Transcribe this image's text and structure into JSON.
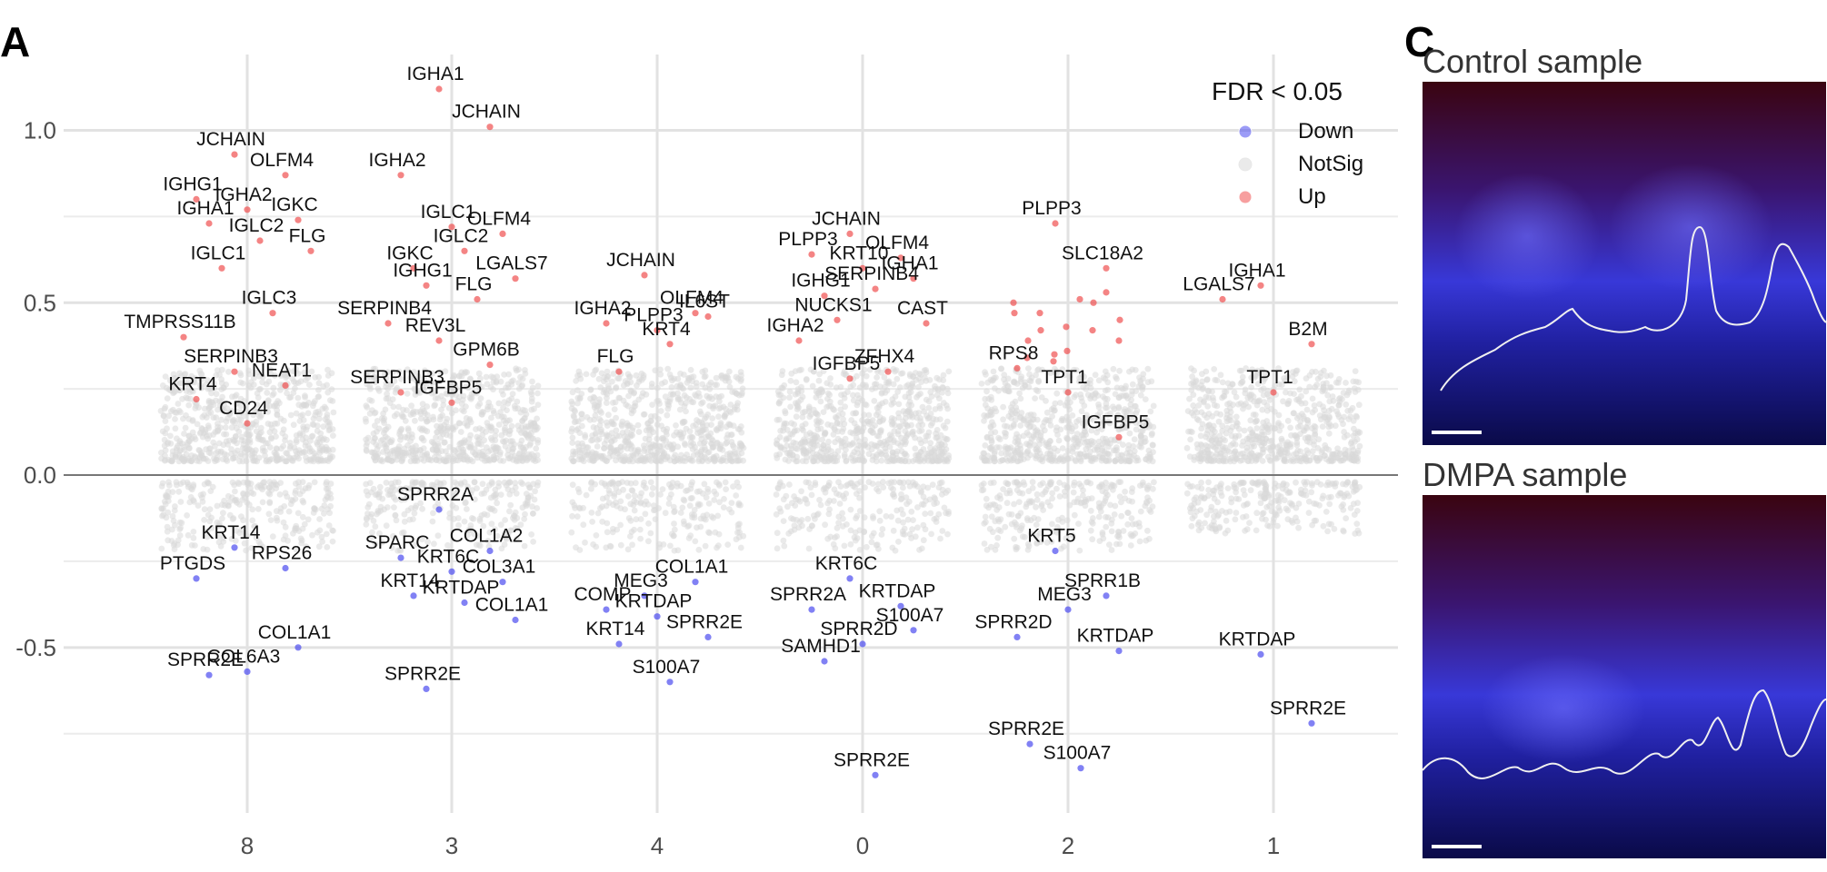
{
  "panel_labels": {
    "a": "A",
    "c": "C"
  },
  "images": [
    {
      "title": "Control sample"
    },
    {
      "title": "DMPA sample"
    }
  ],
  "legend": {
    "title": "FDR < 0.05",
    "entries": [
      {
        "label": "Down",
        "color": "#4b4bf0"
      },
      {
        "label": "NotSig",
        "color": "#d9d9d9"
      },
      {
        "label": "Up",
        "color": "#f05050"
      }
    ]
  },
  "chart_data": {
    "type": "scatter",
    "title": "",
    "xlabel": "",
    "ylabel": "",
    "categories": [
      "8",
      "3",
      "4",
      "0",
      "2",
      "1"
    ],
    "yticks": [
      "1.0",
      "0.5",
      "0.0",
      "-0.5"
    ],
    "ylim": [
      -0.98,
      1.22
    ],
    "grid": true,
    "legend_position": "top-right",
    "colors": {
      "up": "#f05050",
      "down": "#4b4bf0",
      "notsig": "#d9d9d9"
    },
    "labeled_genes": [
      {
        "cluster": "8",
        "gene": "JCHAIN",
        "fc": 0.93,
        "status": "up"
      },
      {
        "cluster": "8",
        "gene": "OLFM4",
        "fc": 0.87,
        "status": "up"
      },
      {
        "cluster": "8",
        "gene": "IGHG1",
        "fc": 0.8,
        "status": "up"
      },
      {
        "cluster": "8",
        "gene": "IGHA2",
        "fc": 0.77,
        "status": "up"
      },
      {
        "cluster": "8",
        "gene": "IGKC",
        "fc": 0.74,
        "status": "up"
      },
      {
        "cluster": "8",
        "gene": "IGHA1",
        "fc": 0.73,
        "status": "up"
      },
      {
        "cluster": "8",
        "gene": "IGLC2",
        "fc": 0.68,
        "status": "up"
      },
      {
        "cluster": "8",
        "gene": "FLG",
        "fc": 0.65,
        "status": "up"
      },
      {
        "cluster": "8",
        "gene": "IGLC1",
        "fc": 0.6,
        "status": "up"
      },
      {
        "cluster": "8",
        "gene": "IGLC3",
        "fc": 0.47,
        "status": "up"
      },
      {
        "cluster": "8",
        "gene": "TMPRSS11B",
        "fc": 0.4,
        "status": "up"
      },
      {
        "cluster": "8",
        "gene": "SERPINB3",
        "fc": 0.3,
        "status": "up"
      },
      {
        "cluster": "8",
        "gene": "NEAT1",
        "fc": 0.26,
        "status": "up"
      },
      {
        "cluster": "8",
        "gene": "KRT4",
        "fc": 0.22,
        "status": "up"
      },
      {
        "cluster": "8",
        "gene": "CD24",
        "fc": 0.15,
        "status": "up"
      },
      {
        "cluster": "8",
        "gene": "KRT14",
        "fc": -0.21,
        "status": "down"
      },
      {
        "cluster": "8",
        "gene": "RPS26",
        "fc": -0.27,
        "status": "down"
      },
      {
        "cluster": "8",
        "gene": "PTGDS",
        "fc": -0.3,
        "status": "down"
      },
      {
        "cluster": "8",
        "gene": "COL6A3",
        "fc": -0.57,
        "status": "down"
      },
      {
        "cluster": "8",
        "gene": "COL1A1",
        "fc": -0.5,
        "status": "down"
      },
      {
        "cluster": "8",
        "gene": "SPRR2E",
        "fc": -0.58,
        "status": "down"
      },
      {
        "cluster": "3",
        "gene": "IGHA1",
        "fc": 1.12,
        "status": "up"
      },
      {
        "cluster": "3",
        "gene": "JCHAIN",
        "fc": 1.01,
        "status": "up"
      },
      {
        "cluster": "3",
        "gene": "IGHA2",
        "fc": 0.87,
        "status": "up"
      },
      {
        "cluster": "3",
        "gene": "IGLC1",
        "fc": 0.72,
        "status": "up"
      },
      {
        "cluster": "3",
        "gene": "OLFM4",
        "fc": 0.7,
        "status": "up"
      },
      {
        "cluster": "3",
        "gene": "IGKC",
        "fc": 0.6,
        "status": "up"
      },
      {
        "cluster": "3",
        "gene": "IGLC2",
        "fc": 0.65,
        "status": "up"
      },
      {
        "cluster": "3",
        "gene": "LGALS7",
        "fc": 0.57,
        "status": "up"
      },
      {
        "cluster": "3",
        "gene": "IGHG1",
        "fc": 0.55,
        "status": "up"
      },
      {
        "cluster": "3",
        "gene": "FLG",
        "fc": 0.51,
        "status": "up"
      },
      {
        "cluster": "3",
        "gene": "SERPINB4",
        "fc": 0.44,
        "status": "up"
      },
      {
        "cluster": "3",
        "gene": "REV3L",
        "fc": 0.39,
        "status": "up"
      },
      {
        "cluster": "3",
        "gene": "GPM6B",
        "fc": 0.32,
        "status": "up"
      },
      {
        "cluster": "3",
        "gene": "SERPINB3",
        "fc": 0.24,
        "status": "up"
      },
      {
        "cluster": "3",
        "gene": "IGFBP5",
        "fc": 0.21,
        "status": "up"
      },
      {
        "cluster": "3",
        "gene": "SPRR2A",
        "fc": -0.1,
        "status": "down"
      },
      {
        "cluster": "3",
        "gene": "COL1A2",
        "fc": -0.22,
        "status": "down"
      },
      {
        "cluster": "3",
        "gene": "SPARC",
        "fc": -0.24,
        "status": "down"
      },
      {
        "cluster": "3",
        "gene": "KRT6C",
        "fc": -0.28,
        "status": "down"
      },
      {
        "cluster": "3",
        "gene": "COL3A1",
        "fc": -0.31,
        "status": "down"
      },
      {
        "cluster": "3",
        "gene": "KRT14",
        "fc": -0.35,
        "status": "down"
      },
      {
        "cluster": "3",
        "gene": "KRTDAP",
        "fc": -0.37,
        "status": "down"
      },
      {
        "cluster": "3",
        "gene": "COL1A1",
        "fc": -0.42,
        "status": "down"
      },
      {
        "cluster": "3",
        "gene": "SPRR2E",
        "fc": -0.62,
        "status": "down"
      },
      {
        "cluster": "4",
        "gene": "JCHAIN",
        "fc": 0.58,
        "status": "up"
      },
      {
        "cluster": "4",
        "gene": "OLFM4",
        "fc": 0.47,
        "status": "up"
      },
      {
        "cluster": "4",
        "gene": "IGHA2",
        "fc": 0.44,
        "status": "up"
      },
      {
        "cluster": "4",
        "gene": "PLPP3",
        "fc": 0.42,
        "status": "up"
      },
      {
        "cluster": "4",
        "gene": "IL6ST",
        "fc": 0.46,
        "status": "up"
      },
      {
        "cluster": "4",
        "gene": "FLG",
        "fc": 0.3,
        "status": "up"
      },
      {
        "cluster": "4",
        "gene": "KRT4",
        "fc": 0.38,
        "status": "up"
      },
      {
        "cluster": "4",
        "gene": "MEG3",
        "fc": -0.35,
        "status": "down"
      },
      {
        "cluster": "4",
        "gene": "COL1A1",
        "fc": -0.31,
        "status": "down"
      },
      {
        "cluster": "4",
        "gene": "COMP",
        "fc": -0.39,
        "status": "down"
      },
      {
        "cluster": "4",
        "gene": "KRTDAP",
        "fc": -0.41,
        "status": "down"
      },
      {
        "cluster": "4",
        "gene": "SPRR2E",
        "fc": -0.47,
        "status": "down"
      },
      {
        "cluster": "4",
        "gene": "KRT14",
        "fc": -0.49,
        "status": "down"
      },
      {
        "cluster": "4",
        "gene": "S100A7",
        "fc": -0.6,
        "status": "down"
      },
      {
        "cluster": "0",
        "gene": "JCHAIN",
        "fc": 0.7,
        "status": "up"
      },
      {
        "cluster": "0",
        "gene": "OLFM4",
        "fc": 0.63,
        "status": "up"
      },
      {
        "cluster": "0",
        "gene": "PLPP3",
        "fc": 0.64,
        "status": "up"
      },
      {
        "cluster": "0",
        "gene": "KRT10",
        "fc": 0.6,
        "status": "up"
      },
      {
        "cluster": "0",
        "gene": "IGHA1",
        "fc": 0.57,
        "status": "up"
      },
      {
        "cluster": "0",
        "gene": "IGHG1",
        "fc": 0.52,
        "status": "up"
      },
      {
        "cluster": "0",
        "gene": "SERPINB4",
        "fc": 0.54,
        "status": "up"
      },
      {
        "cluster": "0",
        "gene": "CAST",
        "fc": 0.44,
        "status": "up"
      },
      {
        "cluster": "0",
        "gene": "NUCKS1",
        "fc": 0.45,
        "status": "up"
      },
      {
        "cluster": "0",
        "gene": "ZFHX4",
        "fc": 0.3,
        "status": "up"
      },
      {
        "cluster": "0",
        "gene": "IGHA2",
        "fc": 0.39,
        "status": "up"
      },
      {
        "cluster": "0",
        "gene": "IGFBP5",
        "fc": 0.28,
        "status": "up"
      },
      {
        "cluster": "0",
        "gene": "KRT6C",
        "fc": -0.3,
        "status": "down"
      },
      {
        "cluster": "0",
        "gene": "KRTDAP",
        "fc": -0.38,
        "status": "down"
      },
      {
        "cluster": "0",
        "gene": "SPRR2A",
        "fc": -0.39,
        "status": "down"
      },
      {
        "cluster": "0",
        "gene": "SPRR2D",
        "fc": -0.49,
        "status": "down"
      },
      {
        "cluster": "0",
        "gene": "S100A7",
        "fc": -0.45,
        "status": "down"
      },
      {
        "cluster": "0",
        "gene": "SAMHD1",
        "fc": -0.54,
        "status": "down"
      },
      {
        "cluster": "0",
        "gene": "SPRR2E",
        "fc": -0.87,
        "status": "down"
      },
      {
        "cluster": "2",
        "gene": "PLPP3",
        "fc": 0.73,
        "status": "up"
      },
      {
        "cluster": "2",
        "gene": "SLC18A2",
        "fc": 0.6,
        "status": "up"
      },
      {
        "cluster": "2",
        "gene": "RPS8",
        "fc": 0.31,
        "status": "up"
      },
      {
        "cluster": "2",
        "gene": "TPT1",
        "fc": 0.24,
        "status": "up"
      },
      {
        "cluster": "2",
        "gene": "IGFBP5",
        "fc": 0.11,
        "status": "up"
      },
      {
        "cluster": "2",
        "gene": "KRT5",
        "fc": -0.22,
        "status": "down"
      },
      {
        "cluster": "2",
        "gene": "SPRR1B",
        "fc": -0.35,
        "status": "down"
      },
      {
        "cluster": "2",
        "gene": "SPRR2D",
        "fc": -0.47,
        "status": "down"
      },
      {
        "cluster": "2",
        "gene": "MEG3",
        "fc": -0.39,
        "status": "down"
      },
      {
        "cluster": "2",
        "gene": "KRTDAP",
        "fc": -0.51,
        "status": "down"
      },
      {
        "cluster": "2",
        "gene": "SPRR2E",
        "fc": -0.78,
        "status": "down"
      },
      {
        "cluster": "2",
        "gene": "S100A7",
        "fc": -0.85,
        "status": "down"
      },
      {
        "cluster": "1",
        "gene": "IGHA1",
        "fc": 0.55,
        "status": "up"
      },
      {
        "cluster": "1",
        "gene": "B2M",
        "fc": 0.38,
        "status": "up"
      },
      {
        "cluster": "1",
        "gene": "LGALS7",
        "fc": 0.51,
        "status": "up"
      },
      {
        "cluster": "1",
        "gene": "TPT1",
        "fc": 0.24,
        "status": "up"
      },
      {
        "cluster": "1",
        "gene": "KRTDAP",
        "fc": -0.52,
        "status": "down"
      },
      {
        "cluster": "1",
        "gene": "SPRR2E",
        "fc": -0.72,
        "status": "down"
      }
    ]
  }
}
